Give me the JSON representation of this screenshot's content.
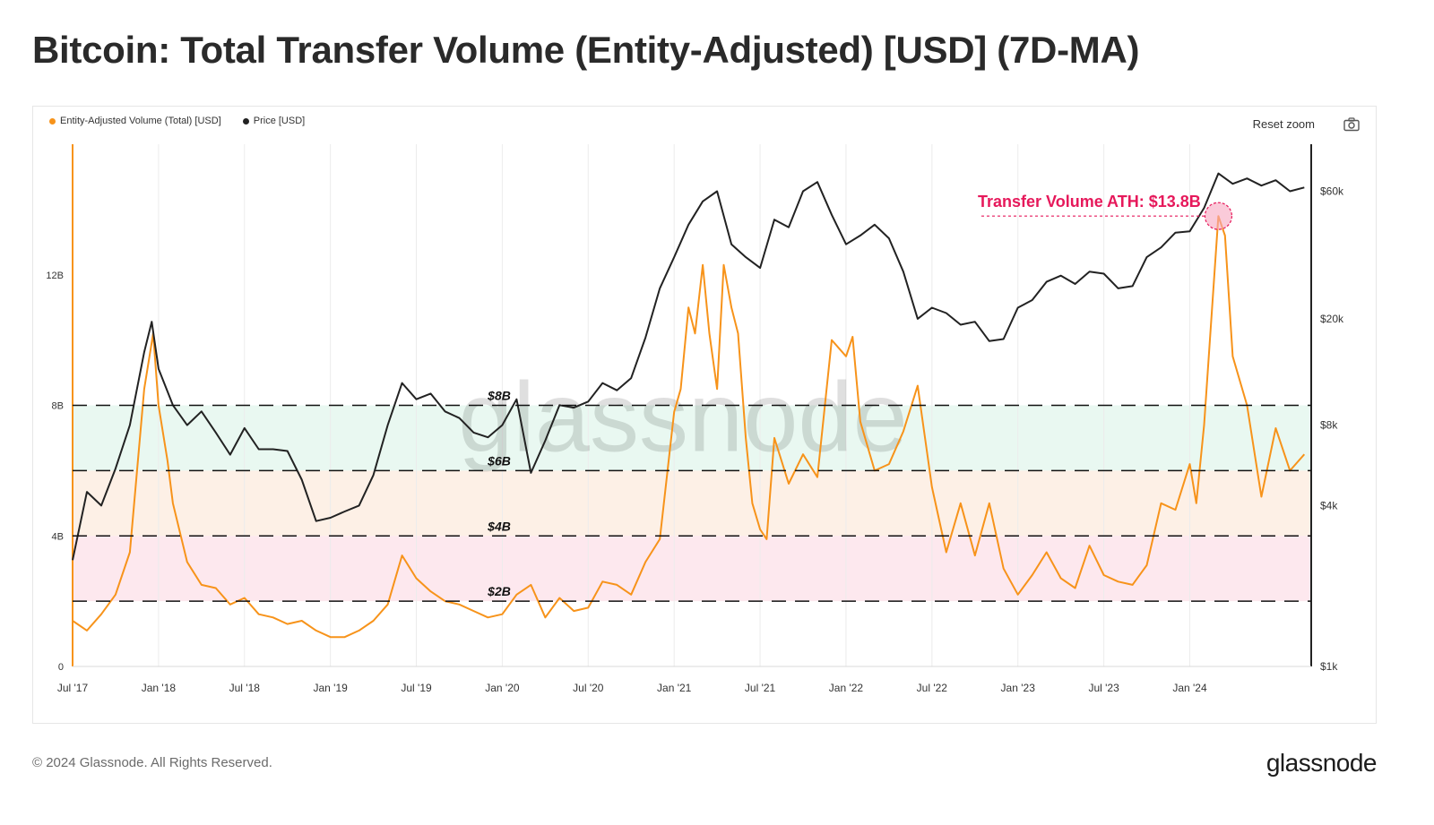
{
  "page": {
    "title": "Bitcoin: Total Transfer Volume (Entity-Adjusted) [USD] (7D-MA)",
    "copyright": "© 2024 Glassnode. All Rights Reserved.",
    "brand": "glassnode"
  },
  "toolbar": {
    "reset_zoom_label": "Reset zoom",
    "camera_icon": "camera-icon"
  },
  "chart_data": {
    "type": "line",
    "title": "Bitcoin: Total Transfer Volume (Entity-Adjusted) [USD] (7D-MA)",
    "watermark": "glassnode",
    "legend": [
      {
        "name": "Entity-Adjusted Volume (Total) [USD]",
        "color": "#f7931a"
      },
      {
        "name": "Price [USD]",
        "color": "#222222"
      }
    ],
    "legend_position": "top-left",
    "x_ticks": [
      "Jul '17",
      "Jan '18",
      "Jul '18",
      "Jan '19",
      "Jul '19",
      "Jan '20",
      "Jul '20",
      "Jan '21",
      "Jul '21",
      "Jan '22",
      "Jul '22",
      "Jan '23",
      "Jul '23",
      "Jan '24"
    ],
    "x_range": [
      "2017-07",
      "2024-09"
    ],
    "y_left": {
      "ticks": [
        "0",
        "4B",
        "8B",
        "12B"
      ],
      "tick_values": [
        0,
        4,
        8,
        12
      ],
      "range": [
        0,
        16
      ],
      "unit": "B USD"
    },
    "y_right": {
      "ticks": [
        "$1k",
        "$4k",
        "$8k",
        "$20k",
        "$60k"
      ],
      "tick_values": [
        1000,
        4000,
        8000,
        20000,
        60000
      ],
      "range": [
        1000,
        90000
      ],
      "scale": "log"
    },
    "grid": true,
    "bands": [
      {
        "from": 2,
        "to": 4,
        "color": "#fde2ea"
      },
      {
        "from": 4,
        "to": 6,
        "color": "#fdece0"
      },
      {
        "from": 6,
        "to": 8,
        "color": "#e3f6ee"
      }
    ],
    "reference_lines": [
      {
        "value": 2,
        "label": "$2B"
      },
      {
        "value": 4,
        "label": "$4B"
      },
      {
        "value": 6,
        "label": "$6B"
      },
      {
        "value": 8,
        "label": "$8B"
      }
    ],
    "annotation": {
      "text": "Transfer Volume ATH: $13.8B",
      "date": "2024-03",
      "value": 13.8,
      "color": "#e6195b"
    },
    "series": [
      {
        "name": "Entity-Adjusted Volume (Total) [USD]",
        "axis": "left",
        "color": "#f7931a",
        "points": [
          [
            "2017-07",
            1.4
          ],
          [
            "2017-08",
            1.1
          ],
          [
            "2017-09",
            1.6
          ],
          [
            "2017-10",
            2.2
          ],
          [
            "2017-11",
            3.5
          ],
          [
            "2017-12",
            8.5
          ],
          [
            "2017-12-20",
            10.2
          ],
          [
            "2018-01",
            8.0
          ],
          [
            "2018-01-20",
            6.3
          ],
          [
            "2018-02",
            5.0
          ],
          [
            "2018-03",
            3.2
          ],
          [
            "2018-04",
            2.5
          ],
          [
            "2018-05",
            2.4
          ],
          [
            "2018-06",
            1.9
          ],
          [
            "2018-07",
            2.1
          ],
          [
            "2018-08",
            1.6
          ],
          [
            "2018-09",
            1.5
          ],
          [
            "2018-10",
            1.3
          ],
          [
            "2018-11",
            1.4
          ],
          [
            "2018-12",
            1.1
          ],
          [
            "2019-01",
            0.9
          ],
          [
            "2019-02",
            0.9
          ],
          [
            "2019-03",
            1.1
          ],
          [
            "2019-04",
            1.4
          ],
          [
            "2019-05",
            1.9
          ],
          [
            "2019-06",
            3.4
          ],
          [
            "2019-07",
            2.7
          ],
          [
            "2019-08",
            2.3
          ],
          [
            "2019-09",
            2.0
          ],
          [
            "2019-10",
            1.9
          ],
          [
            "2019-11",
            1.7
          ],
          [
            "2019-12",
            1.5
          ],
          [
            "2020-01",
            1.6
          ],
          [
            "2020-02",
            2.2
          ],
          [
            "2020-03",
            2.5
          ],
          [
            "2020-04",
            1.5
          ],
          [
            "2020-05",
            2.1
          ],
          [
            "2020-06",
            1.7
          ],
          [
            "2020-07",
            1.8
          ],
          [
            "2020-08",
            2.6
          ],
          [
            "2020-09",
            2.5
          ],
          [
            "2020-10",
            2.2
          ],
          [
            "2020-11",
            3.2
          ],
          [
            "2020-12",
            3.9
          ],
          [
            "2021-01",
            7.8
          ],
          [
            "2021-01-15",
            8.5
          ],
          [
            "2021-02",
            11.0
          ],
          [
            "2021-02-15",
            10.2
          ],
          [
            "2021-03",
            12.3
          ],
          [
            "2021-03-15",
            10.2
          ],
          [
            "2021-04",
            8.5
          ],
          [
            "2021-04-15",
            12.3
          ],
          [
            "2021-05",
            11.0
          ],
          [
            "2021-05-15",
            10.2
          ],
          [
            "2021-06",
            7.0
          ],
          [
            "2021-06-15",
            5.0
          ],
          [
            "2021-07",
            4.2
          ],
          [
            "2021-07-15",
            3.9
          ],
          [
            "2021-08",
            7.0
          ],
          [
            "2021-09",
            5.6
          ],
          [
            "2021-10",
            6.5
          ],
          [
            "2021-11",
            5.8
          ],
          [
            "2021-12",
            10.0
          ],
          [
            "2022-01",
            9.5
          ],
          [
            "2022-01-15",
            10.1
          ],
          [
            "2022-02",
            7.5
          ],
          [
            "2022-03",
            6.0
          ],
          [
            "2022-04",
            6.2
          ],
          [
            "2022-05",
            7.2
          ],
          [
            "2022-06",
            8.6
          ],
          [
            "2022-07",
            5.5
          ],
          [
            "2022-08",
            3.5
          ],
          [
            "2022-09",
            5.0
          ],
          [
            "2022-10",
            3.4
          ],
          [
            "2022-11",
            5.0
          ],
          [
            "2022-12",
            3.0
          ],
          [
            "2023-01",
            2.2
          ],
          [
            "2023-02",
            2.8
          ],
          [
            "2023-03",
            3.5
          ],
          [
            "2023-04",
            2.7
          ],
          [
            "2023-05",
            2.4
          ],
          [
            "2023-06",
            3.7
          ],
          [
            "2023-07",
            2.8
          ],
          [
            "2023-08",
            2.6
          ],
          [
            "2023-09",
            2.5
          ],
          [
            "2023-10",
            3.1
          ],
          [
            "2023-11",
            5.0
          ],
          [
            "2023-12",
            4.8
          ],
          [
            "2024-01",
            6.2
          ],
          [
            "2024-01-15",
            5.0
          ],
          [
            "2024-02",
            7.4
          ],
          [
            "2024-03",
            13.8
          ],
          [
            "2024-03-15",
            13.2
          ],
          [
            "2024-04",
            9.5
          ],
          [
            "2024-05",
            8.0
          ],
          [
            "2024-06",
            5.2
          ],
          [
            "2024-07",
            7.3
          ],
          [
            "2024-08",
            6.0
          ],
          [
            "2024-09",
            6.5
          ]
        ]
      },
      {
        "name": "Price [USD]",
        "axis": "right",
        "color": "#222222",
        "points": [
          [
            "2017-07",
            2500
          ],
          [
            "2017-08",
            4500
          ],
          [
            "2017-09",
            4000
          ],
          [
            "2017-10",
            5500
          ],
          [
            "2017-11",
            8000
          ],
          [
            "2017-12",
            15000
          ],
          [
            "2017-12-17",
            19500
          ],
          [
            "2018-01",
            13000
          ],
          [
            "2018-02",
            9500
          ],
          [
            "2018-03",
            8000
          ],
          [
            "2018-04",
            9000
          ],
          [
            "2018-05",
            7500
          ],
          [
            "2018-06",
            6200
          ],
          [
            "2018-07",
            7800
          ],
          [
            "2018-08",
            6500
          ],
          [
            "2018-09",
            6500
          ],
          [
            "2018-10",
            6400
          ],
          [
            "2018-11",
            5000
          ],
          [
            "2018-12",
            3500
          ],
          [
            "2019-01",
            3600
          ],
          [
            "2019-02",
            3800
          ],
          [
            "2019-03",
            4000
          ],
          [
            "2019-04",
            5200
          ],
          [
            "2019-05",
            8000
          ],
          [
            "2019-06",
            11500
          ],
          [
            "2019-07",
            10000
          ],
          [
            "2019-08",
            10500
          ],
          [
            "2019-09",
            9000
          ],
          [
            "2019-10",
            8500
          ],
          [
            "2019-11",
            7500
          ],
          [
            "2019-12",
            7200
          ],
          [
            "2020-01",
            8000
          ],
          [
            "2020-02",
            10000
          ],
          [
            "2020-03",
            5300
          ],
          [
            "2020-04",
            7000
          ],
          [
            "2020-05",
            9500
          ],
          [
            "2020-06",
            9300
          ],
          [
            "2020-07",
            9800
          ],
          [
            "2020-08",
            11500
          ],
          [
            "2020-09",
            10800
          ],
          [
            "2020-10",
            12000
          ],
          [
            "2020-11",
            17000
          ],
          [
            "2020-12",
            26000
          ],
          [
            "2021-01",
            34000
          ],
          [
            "2021-02",
            45000
          ],
          [
            "2021-03",
            55000
          ],
          [
            "2021-04",
            60000
          ],
          [
            "2021-05",
            38000
          ],
          [
            "2021-06",
            34000
          ],
          [
            "2021-07",
            31000
          ],
          [
            "2021-08",
            47000
          ],
          [
            "2021-09",
            44000
          ],
          [
            "2021-10",
            60000
          ],
          [
            "2021-11",
            65000
          ],
          [
            "2021-12",
            49000
          ],
          [
            "2022-01",
            38000
          ],
          [
            "2022-02",
            41000
          ],
          [
            "2022-03",
            45000
          ],
          [
            "2022-04",
            40000
          ],
          [
            "2022-05",
            30000
          ],
          [
            "2022-06",
            20000
          ],
          [
            "2022-07",
            22000
          ],
          [
            "2022-08",
            21000
          ],
          [
            "2022-09",
            19000
          ],
          [
            "2022-10",
            19500
          ],
          [
            "2022-11",
            16500
          ],
          [
            "2022-12",
            16800
          ],
          [
            "2023-01",
            22000
          ],
          [
            "2023-02",
            23500
          ],
          [
            "2023-03",
            27500
          ],
          [
            "2023-04",
            29000
          ],
          [
            "2023-05",
            27000
          ],
          [
            "2023-06",
            30000
          ],
          [
            "2023-07",
            29500
          ],
          [
            "2023-08",
            26000
          ],
          [
            "2023-09",
            26500
          ],
          [
            "2023-10",
            34000
          ],
          [
            "2023-11",
            37000
          ],
          [
            "2023-12",
            42000
          ],
          [
            "2024-01",
            42500
          ],
          [
            "2024-02",
            52000
          ],
          [
            "2024-03",
            70000
          ],
          [
            "2024-04",
            64000
          ],
          [
            "2024-05",
            67000
          ],
          [
            "2024-06",
            63000
          ],
          [
            "2024-07",
            66000
          ],
          [
            "2024-08",
            60000
          ],
          [
            "2024-09",
            62000
          ]
        ]
      }
    ]
  }
}
